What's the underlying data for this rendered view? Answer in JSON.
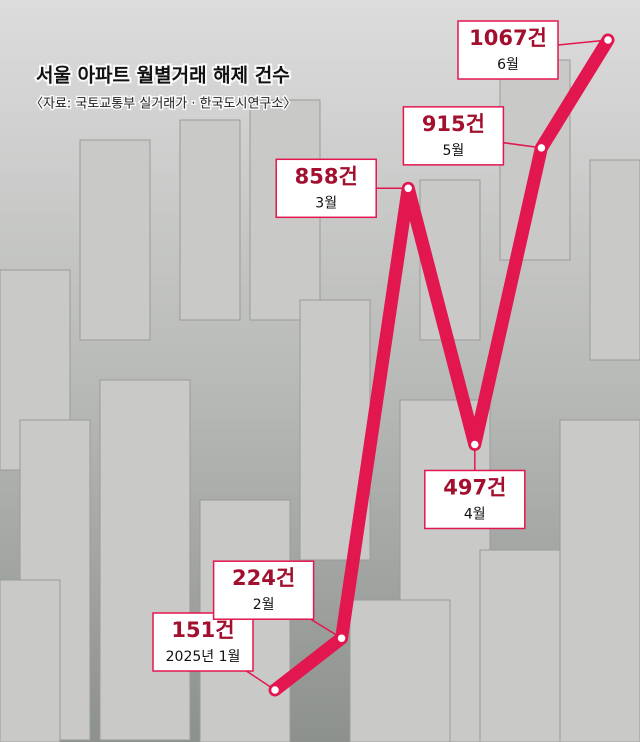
{
  "chart_data": {
    "type": "line",
    "title": "서울 아파트 월별거래 해제 건수",
    "subtitle": "〈자료: 국토교통부 실거래가 · 한국도시연구소〉",
    "categories": [
      "2025년 1월",
      "2월",
      "3월",
      "4월",
      "5월",
      "6월"
    ],
    "values": [
      151,
      224,
      858,
      497,
      915,
      1067
    ],
    "value_labels": [
      "151건",
      "224건",
      "858건",
      "497건",
      "915건",
      "1067건"
    ],
    "color": "#e2174f"
  }
}
